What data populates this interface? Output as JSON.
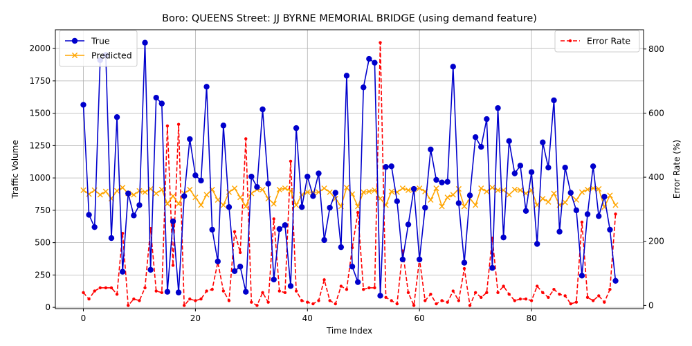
{
  "chart_data": {
    "type": "line",
    "title": "Boro: QUEENS Street: JJ BYRNE MEMORIAL BRIDGE (using demand feature)",
    "xlabel": "Time Index",
    "ylabel_left": "Traffic Volume",
    "ylabel_right": "Error Rate (%)",
    "xlim": [
      -5,
      100
    ],
    "ylim_left": [
      -10,
      2145
    ],
    "ylim_right": [
      -10,
      860
    ],
    "x_ticks": [
      0,
      20,
      40,
      60,
      80
    ],
    "y_ticks_left": [
      0,
      250,
      500,
      750,
      1000,
      1250,
      1500,
      1750,
      2000
    ],
    "y_ticks_right": [
      0,
      200,
      400,
      600,
      800
    ],
    "grid": true,
    "legend_left_position": "upper left",
    "legend_right_position": "upper right",
    "series": [
      {
        "name": "True",
        "axis": "left",
        "color": "#0000cc",
        "marker": "circle",
        "values": [
          1565,
          715,
          620,
          1910,
          1950,
          535,
          1470,
          275,
          880,
          710,
          790,
          2045,
          290,
          1620,
          1575,
          120,
          665,
          115,
          860,
          1300,
          1020,
          980,
          1705,
          600,
          355,
          1405,
          775,
          280,
          315,
          120,
          1010,
          930,
          1530,
          955,
          215,
          605,
          635,
          165,
          1385,
          775,
          1010,
          860,
          1035,
          520,
          770,
          885,
          465,
          1790,
          315,
          195,
          1700,
          1920,
          1890,
          90,
          1085,
          1090,
          820,
          370,
          640,
          915,
          370,
          770,
          1220,
          985,
          965,
          970,
          1860,
          805,
          345,
          865,
          1315,
          1240,
          1455,
          305,
          1540,
          540,
          1285,
          1035,
          1095,
          745,
          1045,
          490,
          1275,
          1080,
          1600,
          585,
          1080,
          885,
          750,
          245,
          720,
          1090,
          705,
          855,
          600,
          205
        ]
      },
      {
        "name": "Predicted",
        "axis": "left",
        "color": "#ffa500",
        "marker": "x",
        "values": [
          905,
          875,
          905,
          870,
          895,
          840,
          900,
          925,
          880,
          870,
          900,
          890,
          915,
          880,
          910,
          800,
          860,
          800,
          880,
          910,
          850,
          790,
          870,
          910,
          830,
          790,
          890,
          920,
          850,
          780,
          880,
          910,
          910,
          840,
          800,
          910,
          920,
          900,
          790,
          870,
          890,
          890,
          890,
          920,
          890,
          840,
          780,
          925,
          875,
          780,
          890,
          895,
          905,
          840,
          790,
          895,
          890,
          920,
          905,
          910,
          920,
          895,
          830,
          920,
          780,
          850,
          870,
          915,
          780,
          840,
          790,
          920,
          895,
          925,
          905,
          905,
          870,
          910,
          905,
          880,
          905,
          790,
          840,
          815,
          880,
          790,
          810,
          870,
          830,
          890,
          910,
          920,
          915,
          775,
          865,
          790
        ]
      },
      {
        "name": "Error Rate",
        "axis": "right",
        "color": "#ff0000",
        "marker": "dot",
        "dashed": true,
        "values": [
          40,
          20,
          45,
          55,
          55,
          55,
          35,
          225,
          0,
          20,
          15,
          55,
          240,
          45,
          40,
          560,
          125,
          565,
          0,
          20,
          15,
          20,
          45,
          50,
          135,
          45,
          15,
          230,
          165,
          520,
          10,
          0,
          40,
          10,
          270,
          45,
          40,
          450,
          45,
          15,
          10,
          5,
          15,
          80,
          15,
          5,
          60,
          50,
          180,
          290,
          50,
          55,
          55,
          820,
          25,
          15,
          5,
          170,
          40,
          0,
          145,
          15,
          35,
          5,
          15,
          10,
          45,
          15,
          115,
          0,
          40,
          25,
          40,
          210,
          40,
          60,
          35,
          15,
          20,
          20,
          15,
          60,
          40,
          25,
          50,
          35,
          30,
          5,
          10,
          260,
          25,
          15,
          30,
          10,
          50,
          285
        ]
      }
    ]
  }
}
